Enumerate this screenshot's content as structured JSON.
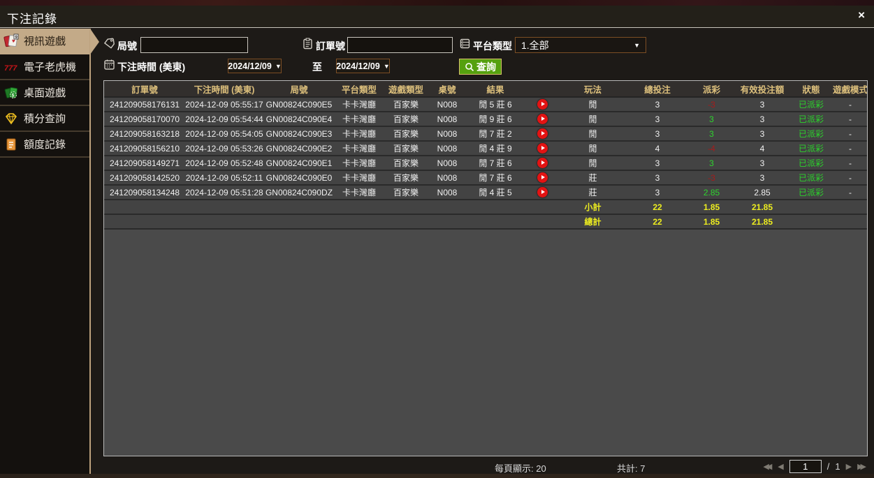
{
  "window": {
    "title": "下注記錄",
    "close": "×"
  },
  "sidebar": {
    "items": [
      {
        "label": "視訊遊戲",
        "icon": "video-games-cards-icon",
        "active": true
      },
      {
        "label": "電子老虎機",
        "icon": "slot-777-icon",
        "active": false
      },
      {
        "label": "桌面遊戲",
        "icon": "table-games-icon",
        "active": false
      },
      {
        "label": "積分查詢",
        "icon": "points-diamond-icon",
        "active": false
      },
      {
        "label": "額度記錄",
        "icon": "credit-ledger-icon",
        "active": false
      }
    ]
  },
  "filters": {
    "round_label": "局號",
    "round_value": "",
    "order_label": "訂單號",
    "order_value": "",
    "platform_label": "平台類型",
    "platform_value": "1.全部",
    "bet_time_label": "下注時間 (美東)",
    "date_from": "2024/12/09",
    "to_label": "至",
    "date_to": "2024/12/09",
    "query_label": "查詢",
    "caret": "▼"
  },
  "table": {
    "headers": [
      "訂單號",
      "下注時間 (美東)",
      "局號",
      "平台類型",
      "遊戲類型",
      "桌號",
      "結果",
      "",
      "玩法",
      "總投注",
      "派彩",
      "有效投注額",
      "狀態",
      "遊戲模式"
    ],
    "rows": [
      {
        "order_no": "241209058176131",
        "bet_time": "2024-12-09 05:55:17",
        "round_no": "GN00824C090E5",
        "platform": "卡卡灣廳",
        "game_type": "百家樂",
        "table_no": "N008",
        "result": "閒 5 莊 6",
        "play_type": "閒",
        "total_bet": "3",
        "payout": "-3",
        "payout_color": "red",
        "valid_bet": "3",
        "status": "已派彩",
        "game_mode": "-"
      },
      {
        "order_no": "241209058170070",
        "bet_time": "2024-12-09 05:54:44",
        "round_no": "GN00824C090E4",
        "platform": "卡卡灣廳",
        "game_type": "百家樂",
        "table_no": "N008",
        "result": "閒 9 莊 6",
        "play_type": "閒",
        "total_bet": "3",
        "payout": "3",
        "payout_color": "green",
        "valid_bet": "3",
        "status": "已派彩",
        "game_mode": "-"
      },
      {
        "order_no": "241209058163218",
        "bet_time": "2024-12-09 05:54:05",
        "round_no": "GN00824C090E3",
        "platform": "卡卡灣廳",
        "game_type": "百家樂",
        "table_no": "N008",
        "result": "閒 7 莊 2",
        "play_type": "閒",
        "total_bet": "3",
        "payout": "3",
        "payout_color": "green",
        "valid_bet": "3",
        "status": "已派彩",
        "game_mode": "-"
      },
      {
        "order_no": "241209058156210",
        "bet_time": "2024-12-09 05:53:26",
        "round_no": "GN00824C090E2",
        "platform": "卡卡灣廳",
        "game_type": "百家樂",
        "table_no": "N008",
        "result": "閒 4 莊 9",
        "play_type": "閒",
        "total_bet": "4",
        "payout": "-4",
        "payout_color": "red",
        "valid_bet": "4",
        "status": "已派彩",
        "game_mode": "-"
      },
      {
        "order_no": "241209058149271",
        "bet_time": "2024-12-09 05:52:48",
        "round_no": "GN00824C090E1",
        "platform": "卡卡灣廳",
        "game_type": "百家樂",
        "table_no": "N008",
        "result": "閒 7 莊 6",
        "play_type": "閒",
        "total_bet": "3",
        "payout": "3",
        "payout_color": "green",
        "valid_bet": "3",
        "status": "已派彩",
        "game_mode": "-"
      },
      {
        "order_no": "241209058142520",
        "bet_time": "2024-12-09 05:52:11",
        "round_no": "GN00824C090E0",
        "platform": "卡卡灣廳",
        "game_type": "百家樂",
        "table_no": "N008",
        "result": "閒 7 莊 6",
        "play_type": "莊",
        "total_bet": "3",
        "payout": "-3",
        "payout_color": "red",
        "valid_bet": "3",
        "status": "已派彩",
        "game_mode": "-"
      },
      {
        "order_no": "241209058134248",
        "bet_time": "2024-12-09 05:51:28",
        "round_no": "GN00824C090DZ",
        "platform": "卡卡灣廳",
        "game_type": "百家樂",
        "table_no": "N008",
        "result": "閒 4 莊 5",
        "play_type": "莊",
        "total_bet": "3",
        "payout": "2.85",
        "payout_color": "green",
        "valid_bet": "2.85",
        "status": "已派彩",
        "game_mode": "-"
      }
    ],
    "subtotal": {
      "label": "小計",
      "total_bet": "22",
      "payout": "1.85",
      "valid_bet": "21.85"
    },
    "grand_total": {
      "label": "總計",
      "total_bet": "22",
      "payout": "1.85",
      "valid_bet": "21.85"
    }
  },
  "pagination": {
    "per_page": "每頁顯示: 20",
    "total_count": "共計: 7",
    "page": "1",
    "separator": "/",
    "total_pages": "1"
  }
}
